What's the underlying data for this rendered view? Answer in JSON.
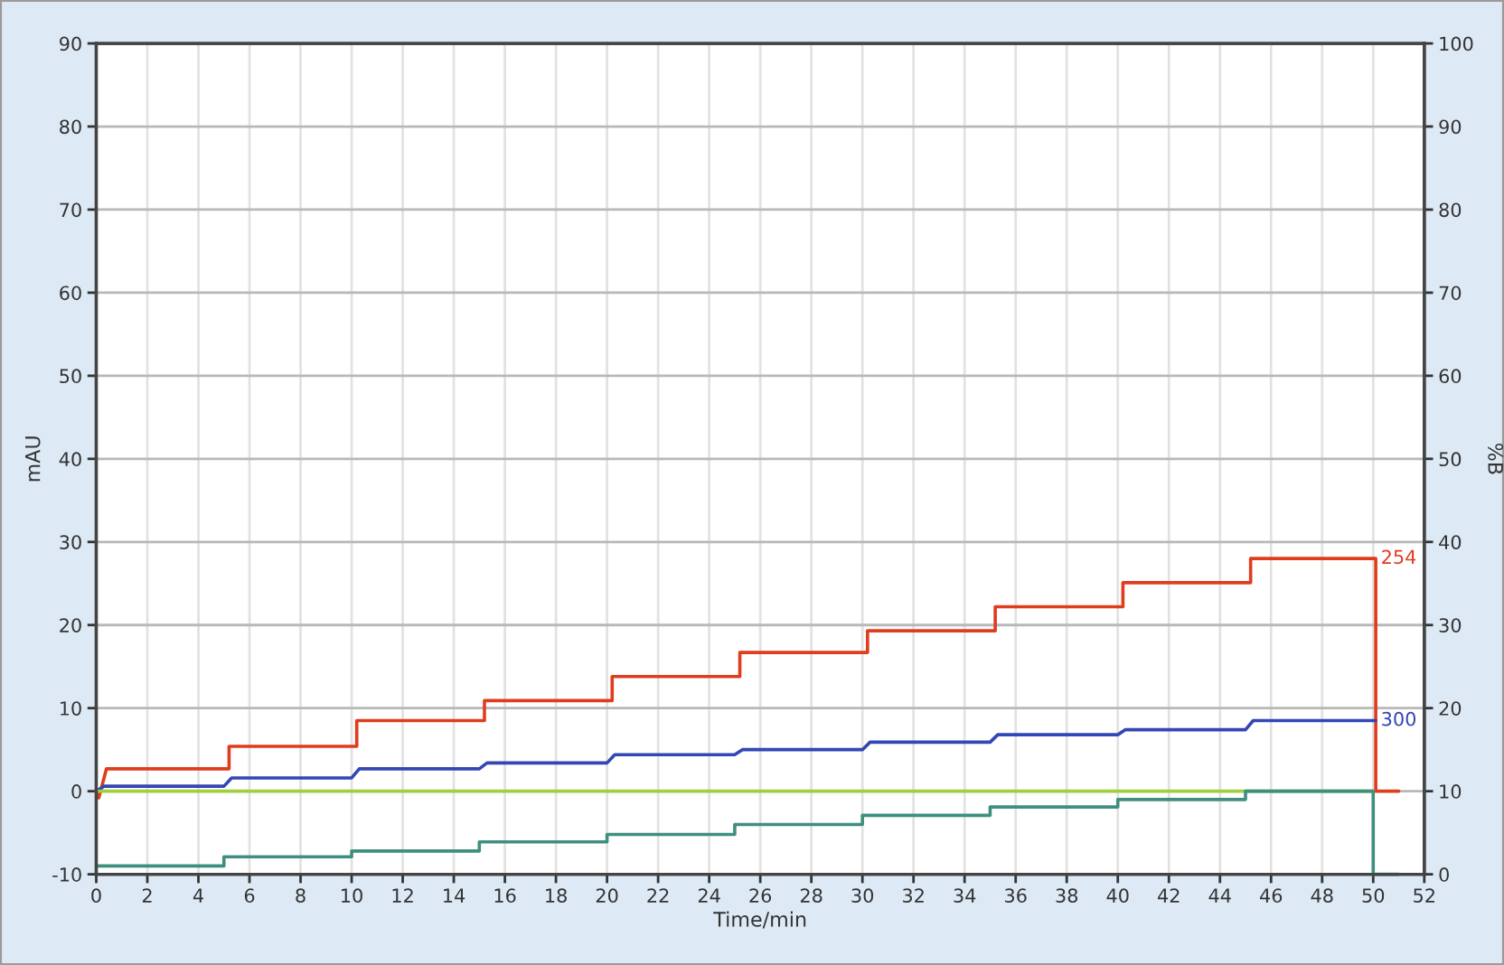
{
  "chart_data": {
    "type": "line",
    "xlabel": "Time/min",
    "ylabel": "mAU",
    "y2label": "%B",
    "xlim": [
      0,
      52
    ],
    "xticks": [
      0,
      2,
      4,
      6,
      8,
      10,
      12,
      14,
      16,
      18,
      20,
      22,
      24,
      26,
      28,
      30,
      32,
      34,
      36,
      38,
      40,
      42,
      44,
      46,
      48,
      50,
      52
    ],
    "ylim": [
      -10,
      90
    ],
    "yticks": [
      -10,
      0,
      10,
      20,
      30,
      40,
      50,
      60,
      70,
      80,
      90
    ],
    "y2lim": [
      0,
      100
    ],
    "y2ticks": [
      0,
      10,
      20,
      30,
      40,
      50,
      60,
      70,
      80,
      90,
      100
    ],
    "grid": true,
    "series": [
      {
        "name": "254",
        "color": "#e03c1e",
        "x": [
          0,
          0.1,
          0.4,
          5.2,
          5.2,
          10.2,
          10.2,
          15.2,
          15.2,
          20.2,
          20.2,
          25.2,
          25.2,
          30.2,
          30.2,
          35.2,
          35.2,
          40.2,
          40.2,
          45.2,
          45.2,
          50.1,
          50.1,
          51.0
        ],
        "values": [
          0,
          -0.8,
          2.7,
          2.7,
          5.4,
          5.4,
          8.5,
          8.5,
          10.9,
          10.9,
          13.8,
          13.8,
          16.7,
          16.7,
          19.3,
          19.3,
          22.2,
          22.2,
          25.1,
          25.1,
          28.0,
          28.0,
          0,
          0
        ]
      },
      {
        "name": "300",
        "color": "#3346b5",
        "x": [
          0,
          0.3,
          5.0,
          5.3,
          10.0,
          10.3,
          15.0,
          15.3,
          20.0,
          20.3,
          25.0,
          25.3,
          30.0,
          30.3,
          35.0,
          35.3,
          40.0,
          40.3,
          45.0,
          45.3,
          50.1
        ],
        "values": [
          0,
          0.6,
          0.6,
          1.6,
          1.6,
          2.7,
          2.7,
          3.4,
          3.4,
          4.4,
          4.4,
          5.0,
          5.0,
          5.9,
          5.9,
          6.8,
          6.8,
          7.4,
          7.4,
          8.5,
          8.5
        ]
      },
      {
        "color": "#9fd040",
        "x": [
          0,
          50.0
        ],
        "values": [
          0,
          0
        ]
      },
      {
        "color": "#3f8f80",
        "axis": "y2",
        "x": [
          0,
          5.0,
          5.0,
          10.0,
          10.0,
          15.0,
          15.0,
          20.0,
          20.0,
          25.0,
          25.0,
          30.0,
          30.0,
          35.0,
          35.0,
          40.0,
          40.0,
          45.0,
          45.0,
          50.0,
          50.0,
          51.0
        ],
        "values": [
          1.0,
          1.0,
          2.1,
          2.1,
          2.8,
          2.8,
          3.9,
          3.9,
          4.8,
          4.8,
          6.0,
          6.0,
          7.1,
          7.1,
          8.1,
          8.1,
          9.0,
          9.0,
          10.0,
          10.0,
          0,
          0
        ]
      }
    ]
  }
}
